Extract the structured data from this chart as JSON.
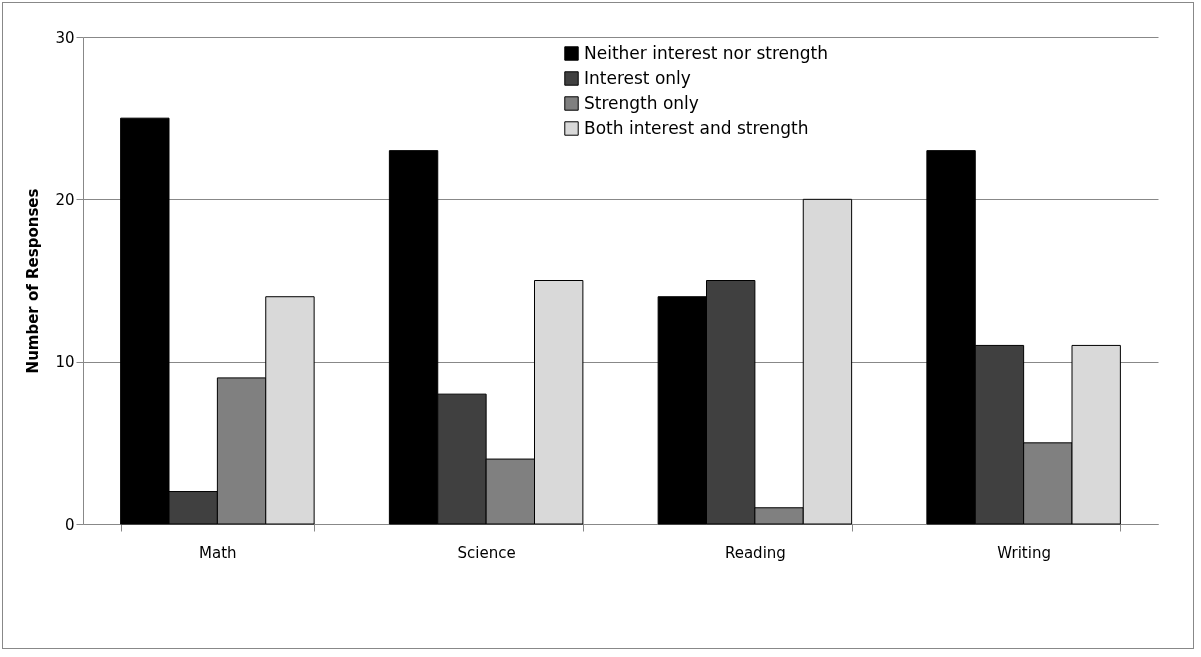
{
  "chart_data": {
    "type": "bar",
    "ylabel": "Number of Responses",
    "categories": [
      "Math",
      "Science",
      "Reading",
      "Writing"
    ],
    "series": [
      {
        "name": "Neither interest nor strength",
        "color": "#000000",
        "values": [
          25,
          23,
          14,
          23
        ]
      },
      {
        "name": "Interest only",
        "color": "#404040",
        "values": [
          2,
          8,
          15,
          11
        ]
      },
      {
        "name": "Strength only",
        "color": "#808080",
        "values": [
          9,
          4,
          1,
          5
        ]
      },
      {
        "name": "Both interest and strength",
        "color": "#d9d9d9",
        "values": [
          14,
          15,
          20,
          11
        ]
      }
    ],
    "ylim": [
      0,
      30
    ],
    "yticks": [
      0,
      10,
      20,
      30
    ],
    "grid": "y",
    "legend": "top"
  }
}
